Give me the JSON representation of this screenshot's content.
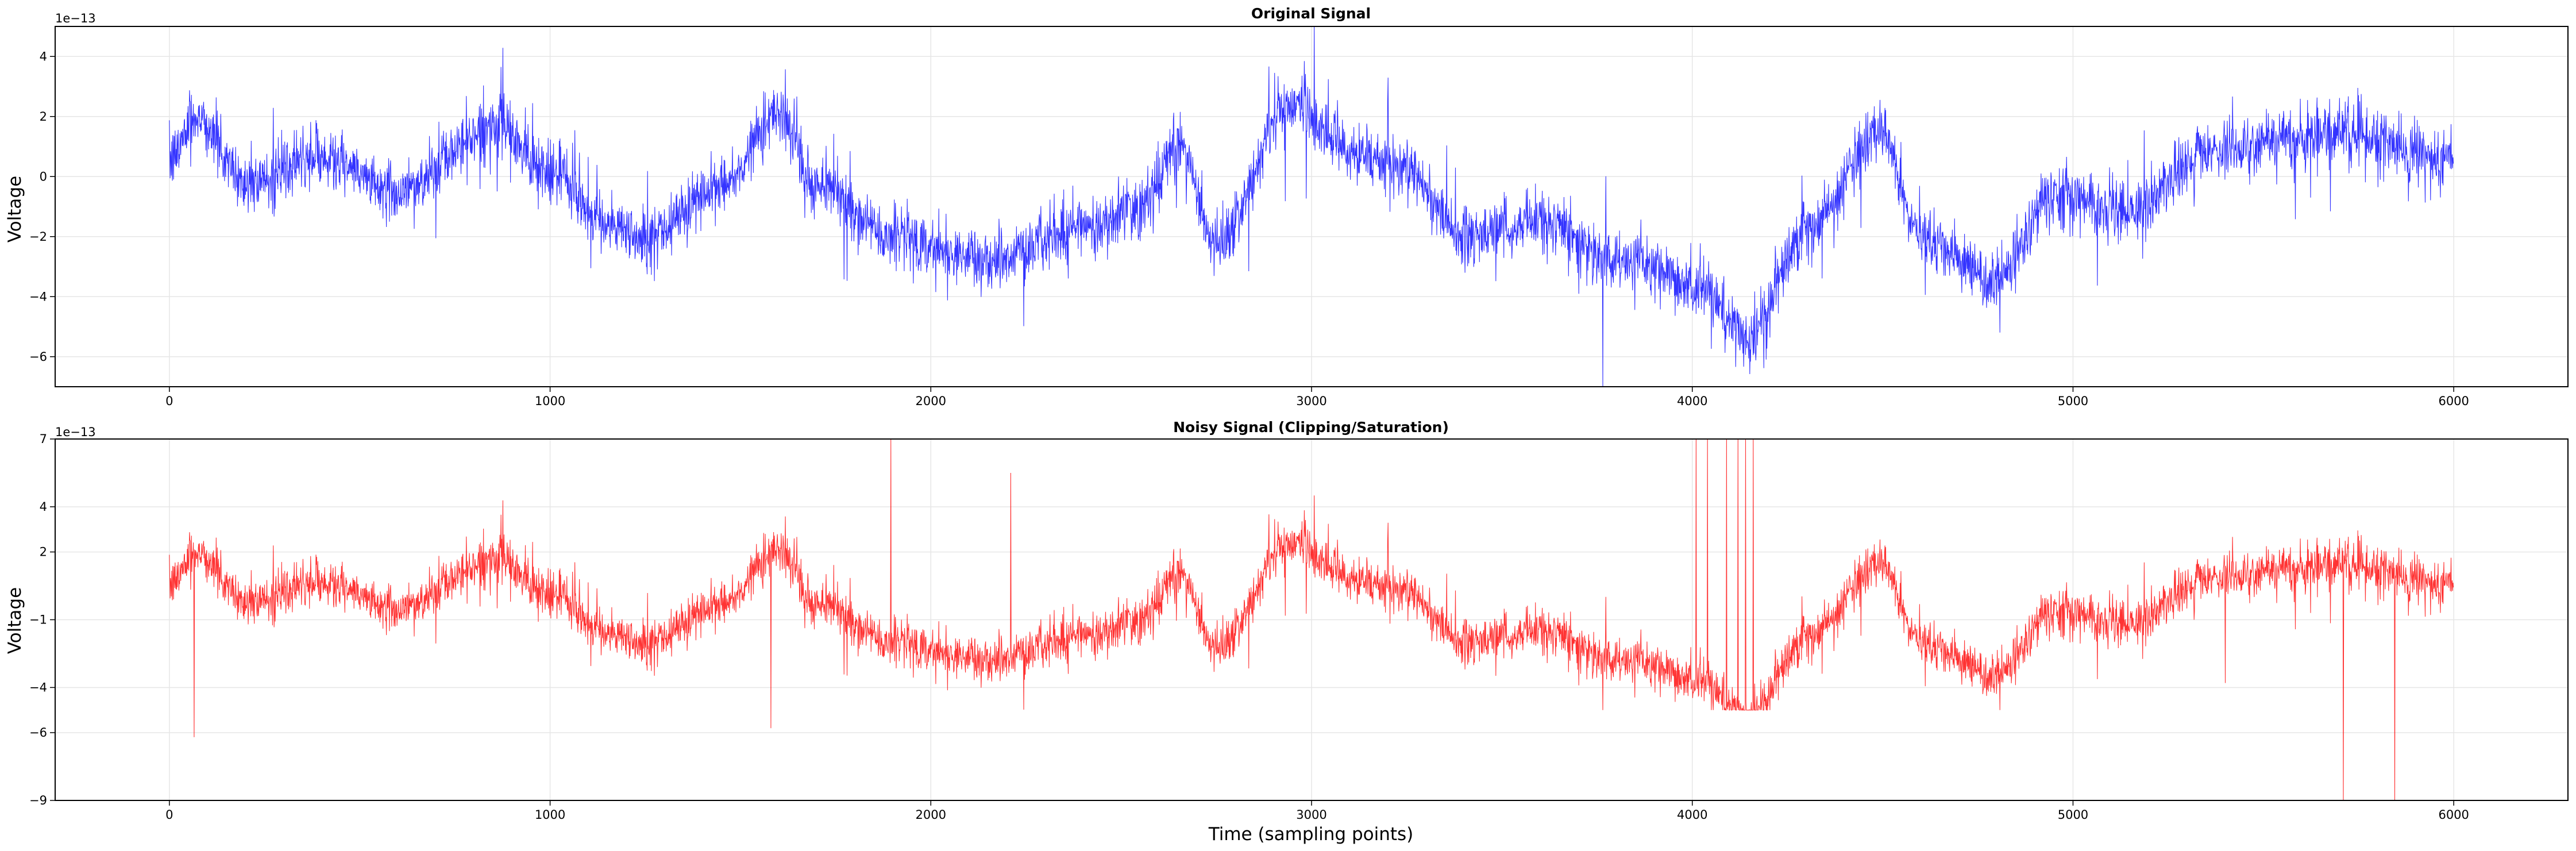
{
  "chart_data": [
    {
      "type": "line",
      "title": "Original Signal",
      "xlabel": "",
      "ylabel": "Voltage",
      "offset_text": "1e−13",
      "xlim": [
        -300,
        6300
      ],
      "ylim": [
        -7.0,
        5.0
      ],
      "xticks": [
        0,
        1000,
        2000,
        3000,
        4000,
        5000,
        6000
      ],
      "xtick_labels": [
        "0",
        "1000",
        "2000",
        "3000",
        "4000",
        "5000",
        "6000"
      ],
      "yticks": [
        -6,
        -4,
        -2,
        0,
        2,
        4
      ],
      "ytick_labels": [
        "−6",
        "−4",
        "−2",
        "0",
        "2",
        "4"
      ],
      "grid": true,
      "n_points": 6000,
      "trend": [
        [
          0,
          0.5
        ],
        [
          70,
          2.0
        ],
        [
          200,
          -0.2
        ],
        [
          400,
          0.6
        ],
        [
          600,
          -0.5
        ],
        [
          850,
          1.6
        ],
        [
          1000,
          0.2
        ],
        [
          1150,
          -1.6
        ],
        [
          1250,
          -2.0
        ],
        [
          1450,
          -0.3
        ],
        [
          1600,
          2.2
        ],
        [
          1700,
          -0.3
        ],
        [
          1900,
          -2.0
        ],
        [
          2150,
          -2.8
        ],
        [
          2450,
          -1.5
        ],
        [
          2550,
          -1.0
        ],
        [
          2650,
          1.0
        ],
        [
          2750,
          -2.2
        ],
        [
          2950,
          2.5
        ],
        [
          3100,
          0.8
        ],
        [
          3250,
          0.2
        ],
        [
          3400,
          -2.0
        ],
        [
          3600,
          -1.5
        ],
        [
          3800,
          -2.8
        ],
        [
          4000,
          -3.6
        ],
        [
          4150,
          -5.3
        ],
        [
          4300,
          -1.8
        ],
        [
          4500,
          1.5
        ],
        [
          4600,
          -2.0
        ],
        [
          4800,
          -3.5
        ],
        [
          4950,
          -0.6
        ],
        [
          5150,
          -1.2
        ],
        [
          5350,
          0.8
        ],
        [
          5700,
          1.5
        ],
        [
          6000,
          0.5
        ]
      ],
      "noise_amplitude": 0.9,
      "series": [
        {
          "color": "#0000ff"
        }
      ]
    },
    {
      "type": "line",
      "title": "Noisy Signal (Clipping/Saturation)",
      "xlabel": "Time (sampling points)",
      "ylabel": "Voltage",
      "offset_text": "1e−13",
      "xlim": [
        -300,
        6300
      ],
      "ylim": [
        -9.0,
        7.0
      ],
      "xticks": [
        0,
        1000,
        2000,
        3000,
        4000,
        5000,
        6000
      ],
      "xtick_labels": [
        "0",
        "1000",
        "2000",
        "3000",
        "4000",
        "5000",
        "6000"
      ],
      "yticks": [
        -9,
        -6,
        -4,
        -1,
        2,
        4,
        7
      ],
      "ytick_labels": [
        "−9",
        "−6",
        "−4",
        "−1",
        "2",
        "4",
        "7"
      ],
      "grid": true,
      "n_points": 6000,
      "clip_range": [
        -5.0,
        4.5
      ],
      "spikes": [
        [
          65,
          -6.2
        ],
        [
          1580,
          -5.8
        ],
        [
          1895,
          7.0
        ],
        [
          2210,
          5.5
        ],
        [
          4010,
          7.0
        ],
        [
          4040,
          7.0
        ],
        [
          4090,
          7.0
        ],
        [
          4120,
          7.0
        ],
        [
          4140,
          7.0
        ],
        [
          4160,
          7.0
        ],
        [
          5400,
          -3.8
        ],
        [
          5710,
          -9.0
        ],
        [
          5845,
          -9.0
        ]
      ],
      "series": [
        {
          "color": "#ff0000"
        }
      ]
    }
  ]
}
